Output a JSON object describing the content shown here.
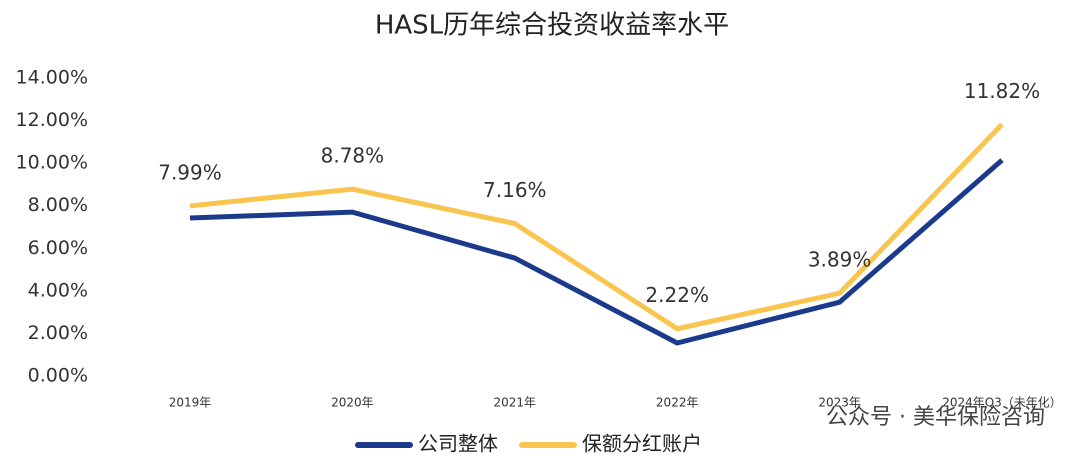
{
  "chart_data": {
    "type": "line",
    "title": "HASL历年综合投资收益率水平",
    "categories": [
      "2019年",
      "2020年",
      "2021年",
      "2022年",
      "2023年",
      "2024年Q3（未年化）"
    ],
    "series": [
      {
        "name": "公司整体",
        "color": "#1c3a8c",
        "values": [
          7.42,
          7.7,
          5.54,
          1.55,
          3.47,
          10.14
        ]
      },
      {
        "name": "保额分红账户",
        "color": "#f9c54e",
        "values": [
          7.99,
          8.78,
          7.16,
          2.22,
          3.89,
          11.82
        ],
        "value_labels": [
          "7.99%",
          "8.78%",
          "7.16%",
          "2.22%",
          "3.89%",
          "11.82%"
        ]
      }
    ],
    "ylim": [
      0,
      14
    ],
    "yticks": [
      {
        "value": 0,
        "label": "0.00%"
      },
      {
        "value": 2,
        "label": "2.00%"
      },
      {
        "value": 4,
        "label": "4.00%"
      },
      {
        "value": 6,
        "label": "6.00%"
      },
      {
        "value": 8,
        "label": "8.00%"
      },
      {
        "value": 10,
        "label": "10.00%"
      },
      {
        "value": 12,
        "label": "12.00%"
      },
      {
        "value": 14,
        "label": "14.00%"
      }
    ],
    "grid": false,
    "watermark": "公众号 · 美华保险咨询"
  }
}
